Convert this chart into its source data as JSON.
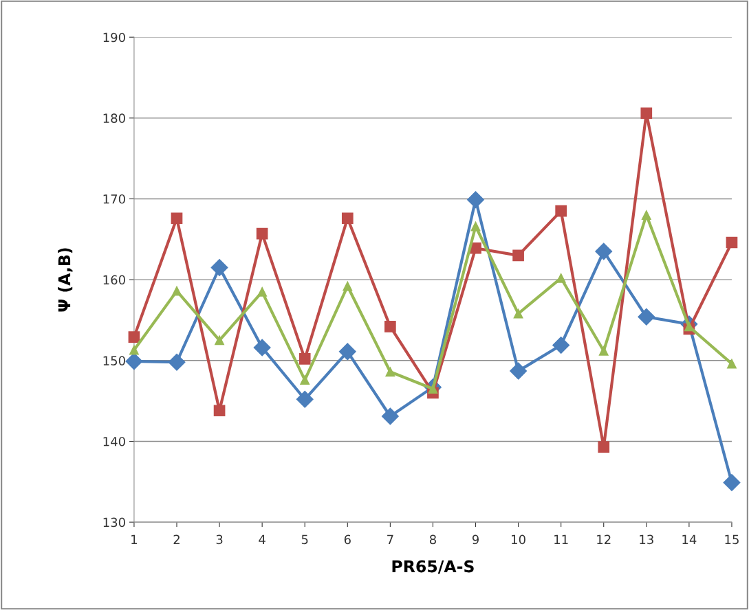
{
  "chart_data": {
    "type": "line",
    "xlabel": "PR65/A-S",
    "ylabel": "Ψ (A,B)",
    "categories": [
      "1",
      "2",
      "3",
      "4",
      "5",
      "6",
      "7",
      "8",
      "9",
      "10",
      "11",
      "12",
      "13",
      "14",
      "15"
    ],
    "series": [
      {
        "color": "#4a7ebb",
        "marker": "diamond",
        "values": [
          149.9,
          149.8,
          161.5,
          151.6,
          145.2,
          151.1,
          143.1,
          146.7,
          169.9,
          148.7,
          151.9,
          163.5,
          155.4,
          154.5,
          134.9
        ]
      },
      {
        "color": "#be4b48",
        "marker": "square",
        "values": [
          152.9,
          167.6,
          143.8,
          165.7,
          150.2,
          167.6,
          154.2,
          146.0,
          163.9,
          163.0,
          168.5,
          139.3,
          180.6,
          153.9,
          164.6
        ]
      },
      {
        "color": "#98b954",
        "marker": "triangle",
        "values": [
          151.3,
          158.6,
          152.5,
          158.5,
          147.6,
          159.2,
          148.6,
          146.5,
          166.6,
          155.8,
          160.2,
          151.2,
          168.0,
          154.2,
          149.6
        ]
      }
    ],
    "ylim": [
      130,
      190
    ],
    "yticks": [
      130,
      140,
      150,
      160,
      170,
      180,
      190
    ],
    "grid": "y",
    "legend": false
  }
}
